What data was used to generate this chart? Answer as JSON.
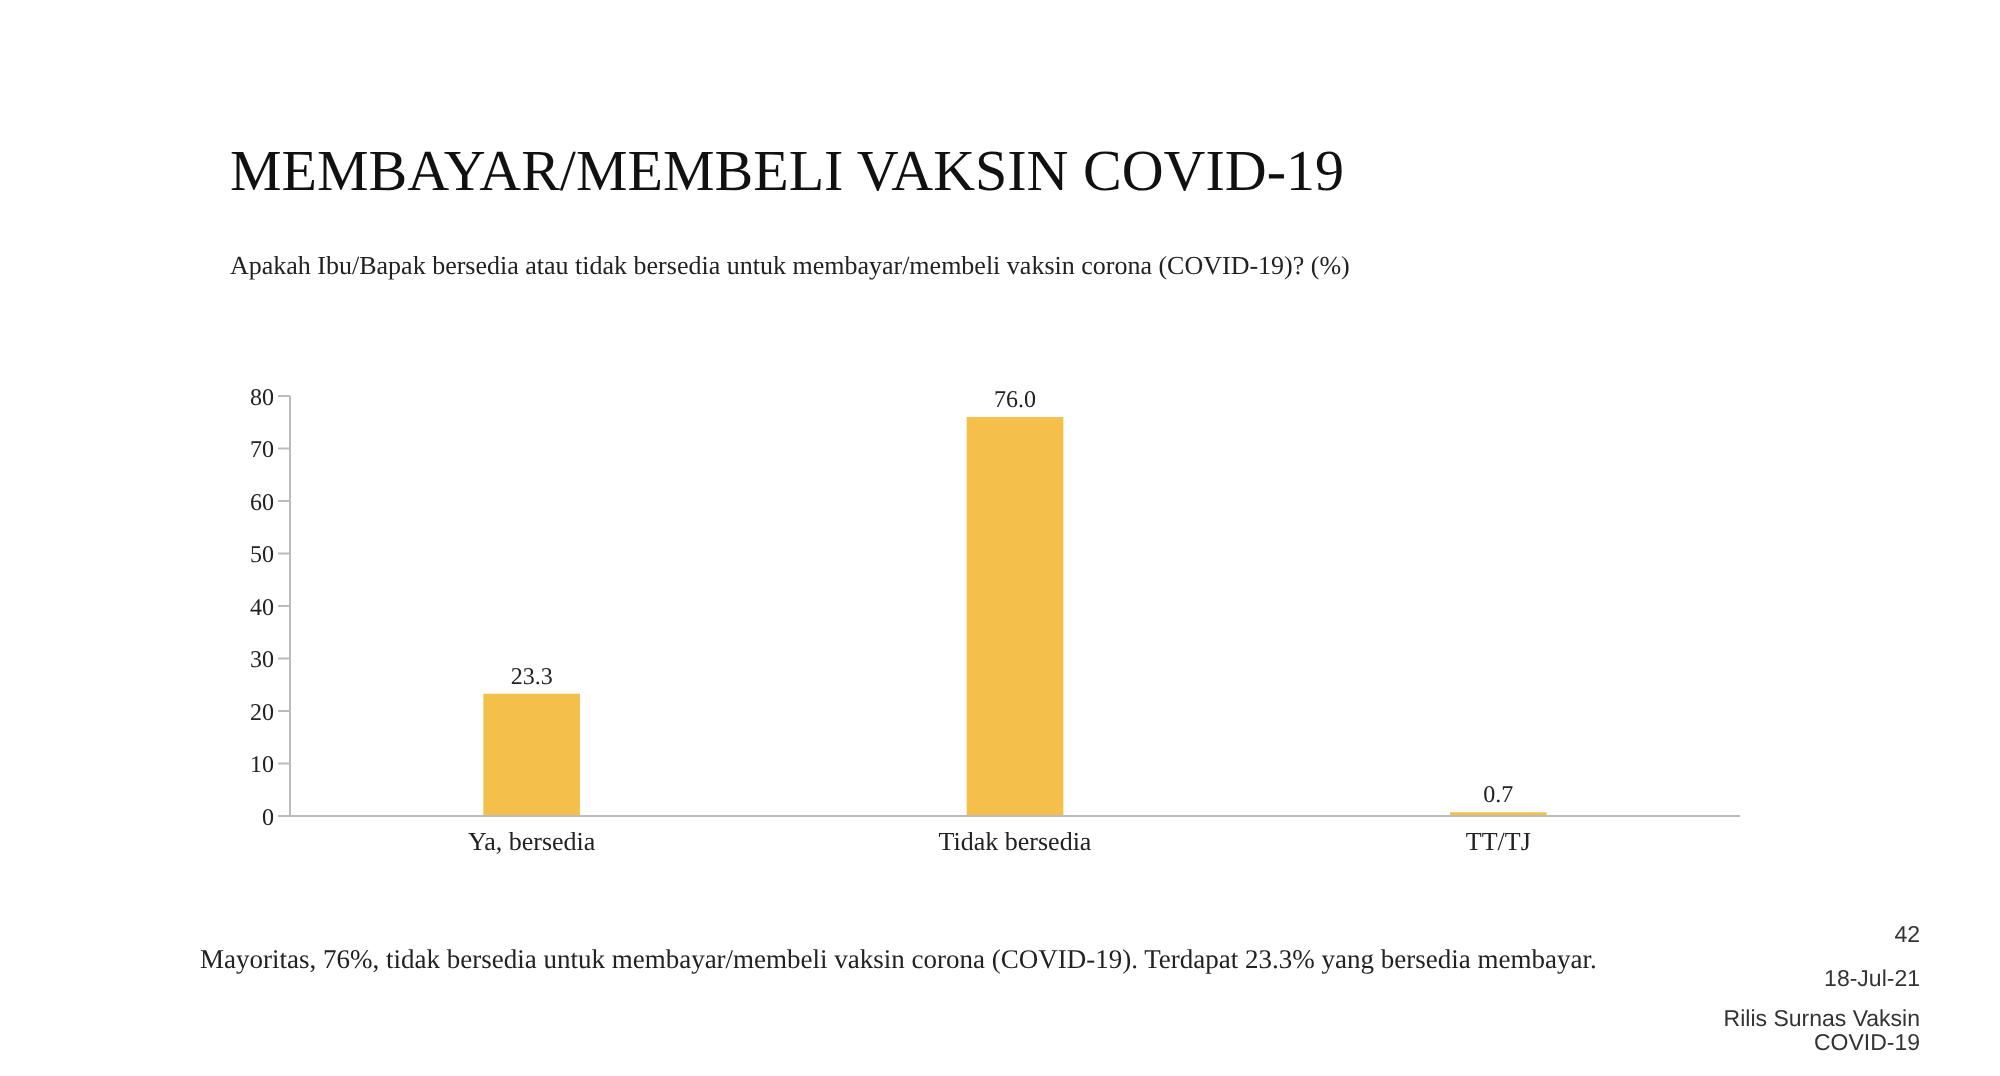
{
  "chart_data": {
    "type": "bar",
    "title": "MEMBAYAR/MEMBELI VAKSIN COVID-19",
    "subtitle": "Apakah Ibu/Bapak bersedia atau tidak bersedia untuk membayar/membeli vaksin corona (COVID-19)? (%)",
    "categories": [
      "Ya, bersedia",
      "Tidak bersedia",
      "TT/TJ"
    ],
    "values": [
      23.3,
      76.0,
      0.7
    ],
    "value_labels": [
      "23.3",
      "76.0",
      "0.7"
    ],
    "color": "#f4c04a",
    "ylim": [
      0,
      80
    ],
    "yticks": [
      0,
      10,
      20,
      30,
      40,
      50,
      60,
      70,
      80
    ],
    "grid": false,
    "legend": false,
    "annotations": [
      "Mayoritas, 76%, tidak bersedia untuk membayar/membeli vaksin corona (COVID-19). Terdapat 23.3% yang bersedia membayar.",
      "42",
      "18-Jul-21",
      "Rilis Surnas Vaksin COVID-19"
    ]
  }
}
